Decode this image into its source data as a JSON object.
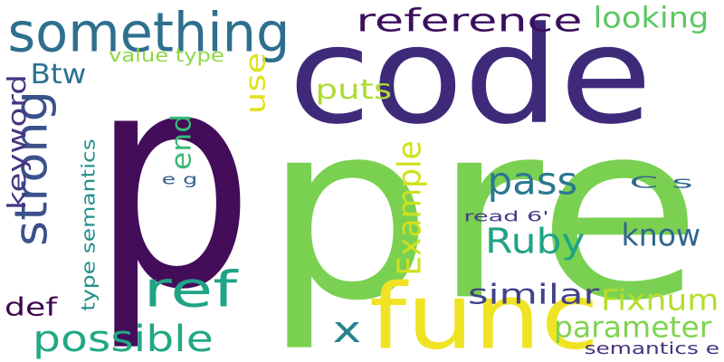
{
  "word_cloud": {
    "words": [
      {
        "id": "p",
        "text": "p",
        "color": "#440d5a",
        "vertical": false
      },
      {
        "id": "pre",
        "text": "pre",
        "color": "#7ad151",
        "vertical": false
      },
      {
        "id": "code",
        "text": "code",
        "color": "#3f2a7a",
        "vertical": false
      },
      {
        "id": "func",
        "text": "func",
        "color": "#f0e323",
        "vertical": false
      },
      {
        "id": "something",
        "text": "something",
        "color": "#2e6f8e",
        "vertical": false
      },
      {
        "id": "strong",
        "text": "strong",
        "color": "#3b518b",
        "vertical": true
      },
      {
        "id": "reference",
        "text": "reference",
        "color": "#3b0f5e",
        "vertical": false
      },
      {
        "id": "looking",
        "text": "looking",
        "color": "#5cc863",
        "vertical": false
      },
      {
        "id": "value_type",
        "text": "value type",
        "color": "#8fd744",
        "vertical": false
      },
      {
        "id": "use",
        "text": "use",
        "color": "#e0e31a",
        "vertical": true
      },
      {
        "id": "btw",
        "text": "Btw",
        "color": "#2c728e",
        "vertical": false
      },
      {
        "id": "keyword",
        "text": "keyword",
        "color": "#453581",
        "vertical": true
      },
      {
        "id": "puts",
        "text": "puts",
        "color": "#addc30",
        "vertical": false
      },
      {
        "id": "end",
        "text": "end",
        "color": "#3aba76",
        "vertical": true
      },
      {
        "id": "type_semantics",
        "text": "type semantics",
        "color": "#21908c",
        "vertical": true
      },
      {
        "id": "e_g",
        "text": "e g",
        "color": "#355f8d",
        "vertical": false
      },
      {
        "id": "pass",
        "text": "pass",
        "color": "#2a788e",
        "vertical": false
      },
      {
        "id": "example",
        "text": "Example",
        "color": "#d0e11c",
        "vertical": true
      },
      {
        "id": "c_s",
        "text": "C s",
        "color": "#31688e",
        "vertical": false
      },
      {
        "id": "read_6",
        "text": "read 6'",
        "color": "#433e85",
        "vertical": false
      },
      {
        "id": "ruby",
        "text": "Ruby",
        "color": "#20a386",
        "vertical": false
      },
      {
        "id": "know",
        "text": "know",
        "color": "#31668e",
        "vertical": false
      },
      {
        "id": "ref",
        "text": "ref",
        "color": "#20a486",
        "vertical": false
      },
      {
        "id": "similar",
        "text": "similar",
        "color": "#414287",
        "vertical": false
      },
      {
        "id": "fixnum",
        "text": "Fixnum",
        "color": "#b5de2b",
        "vertical": false
      },
      {
        "id": "def",
        "text": "def",
        "color": "#3e0751",
        "vertical": false
      },
      {
        "id": "x",
        "text": "x",
        "color": "#26828e",
        "vertical": false
      },
      {
        "id": "parameter",
        "text": "parameter",
        "color": "#7fd34e",
        "vertical": false
      },
      {
        "id": "possible",
        "text": "possible",
        "color": "#22a884",
        "vertical": false
      },
      {
        "id": "semantics_e",
        "text": "semantics e",
        "color": "#46327e",
        "vertical": false
      }
    ]
  }
}
